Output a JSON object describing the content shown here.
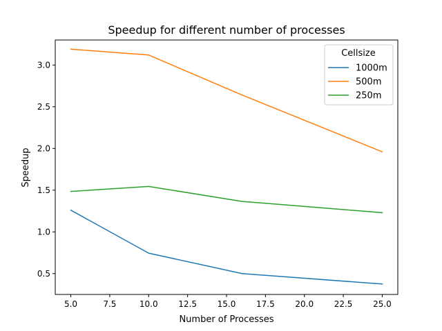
{
  "chart_data": {
    "type": "line",
    "title": "Speedup for different number of processes",
    "xlabel": "Number of Processes",
    "ylabel": "Speedup",
    "xlim": [
      4.0,
      26.0
    ],
    "ylim": [
      0.25,
      3.3
    ],
    "xticks": [
      5.0,
      7.5,
      10.0,
      12.5,
      15.0,
      17.5,
      20.0,
      22.5,
      25.0
    ],
    "xtick_labels": [
      "5.0",
      "7.5",
      "10.0",
      "12.5",
      "15.0",
      "17.5",
      "20.0",
      "22.5",
      "25.0"
    ],
    "yticks": [
      0.5,
      1.0,
      1.5,
      2.0,
      2.5,
      3.0
    ],
    "ytick_labels": [
      "0.5",
      "1.0",
      "1.5",
      "2.0",
      "2.5",
      "3.0"
    ],
    "grid": false,
    "legend": {
      "title": "Cellsize",
      "placement": "top-right"
    },
    "x": [
      5,
      10,
      16,
      25
    ],
    "series": [
      {
        "name": "1000m",
        "color": "#1f77b4",
        "values": [
          1.26,
          0.745,
          0.5,
          0.375
        ]
      },
      {
        "name": "500m",
        "color": "#ff7f0e",
        "values": [
          3.19,
          3.12,
          2.64,
          1.96
        ]
      },
      {
        "name": "250m",
        "color": "#2ca02c",
        "values": [
          1.485,
          1.545,
          1.365,
          1.23
        ]
      }
    ]
  }
}
